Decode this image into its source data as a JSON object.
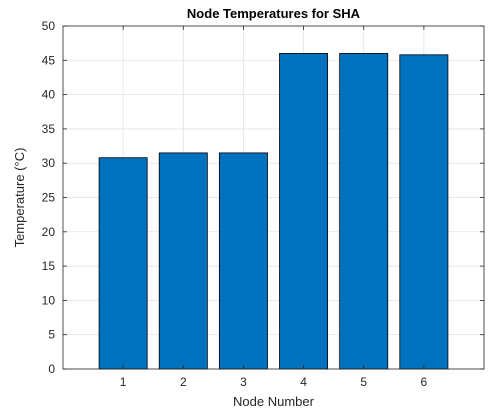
{
  "chart_data": {
    "type": "bar",
    "title": "Node Temperatures for SHA",
    "xlabel": "Node Number",
    "ylabel": "Temperature (°C)",
    "categories": [
      "1",
      "2",
      "3",
      "4",
      "5",
      "6"
    ],
    "values": [
      30.8,
      31.5,
      31.5,
      46.0,
      46.0,
      45.8
    ],
    "ylim": [
      0,
      50
    ],
    "yticks": [
      "0",
      "5",
      "10",
      "15",
      "20",
      "25",
      "30",
      "35",
      "40",
      "45",
      "50"
    ],
    "grid": true,
    "bar_color": "#0072BD",
    "bar_edge_color": "#000000"
  }
}
